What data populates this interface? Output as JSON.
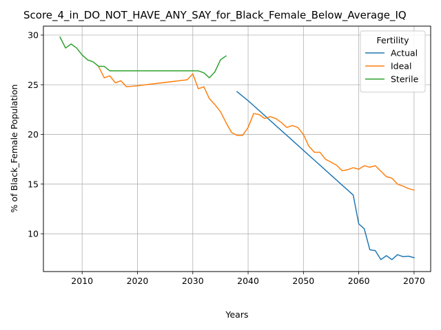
{
  "chart_data": {
    "type": "line",
    "title": "Score_4_in_DO_NOT_HAVE_ANY_SAY_for_Black_Female_Below_Average_IQ",
    "xlabel": "Years",
    "ylabel": "% of Black_Female Population",
    "xlim": [
      2003,
      2073
    ],
    "ylim": [
      6.2,
      30.9
    ],
    "xticks": [
      2010,
      2020,
      2030,
      2040,
      2050,
      2060,
      2070
    ],
    "yticks": [
      10,
      15,
      20,
      25,
      30
    ],
    "grid": true,
    "legend": {
      "title": "Fertility",
      "placement": "top-right"
    },
    "series": [
      {
        "name": "Actual",
        "color": "#1f77b4",
        "x": [
          2038,
          2039,
          2040,
          2041,
          2042,
          2043,
          2044,
          2045,
          2046,
          2047,
          2048,
          2049,
          2050,
          2051,
          2052,
          2053,
          2054,
          2055,
          2056,
          2057,
          2058,
          2059,
          2060,
          2061,
          2062,
          2063,
          2064,
          2065,
          2066,
          2067,
          2068,
          2069,
          2070
        ],
        "values": [
          24.3,
          23.85,
          23.4,
          22.9,
          22.4,
          21.9,
          21.4,
          20.9,
          20.4,
          19.9,
          19.4,
          18.9,
          18.4,
          17.9,
          17.4,
          16.9,
          16.4,
          15.9,
          15.4,
          14.9,
          14.4,
          13.9,
          11.0,
          10.5,
          8.4,
          8.3,
          7.4,
          7.8,
          7.4,
          7.9,
          7.7,
          7.75,
          7.6
        ]
      },
      {
        "name": "Ideal",
        "color": "#ff7f0e",
        "x": [
          2013,
          2014,
          2015,
          2016,
          2017,
          2018,
          2019,
          2020,
          2029,
          2030,
          2031,
          2032,
          2033,
          2034,
          2035,
          2036,
          2037,
          2038,
          2039,
          2040,
          2041,
          2042,
          2043,
          2044,
          2045,
          2046,
          2047,
          2048,
          2049,
          2050,
          2051,
          2052,
          2053,
          2054,
          2055,
          2056,
          2057,
          2058,
          2059,
          2060,
          2061,
          2062,
          2063,
          2064,
          2065,
          2066,
          2067,
          2068,
          2069,
          2070
        ],
        "values": [
          26.8,
          25.7,
          25.9,
          25.2,
          25.4,
          24.8,
          24.85,
          24.9,
          25.5,
          26.1,
          24.6,
          24.8,
          23.6,
          23.0,
          22.3,
          21.2,
          20.2,
          19.9,
          19.9,
          20.7,
          22.1,
          22.0,
          21.6,
          21.8,
          21.6,
          21.2,
          20.7,
          20.9,
          20.7,
          20.0,
          18.8,
          18.2,
          18.2,
          17.5,
          17.2,
          16.9,
          16.35,
          16.45,
          16.65,
          16.5,
          16.85,
          16.7,
          16.85,
          16.3,
          15.75,
          15.6,
          15.0,
          14.8,
          14.55,
          14.4
        ]
      },
      {
        "name": "Sterile",
        "color": "#2ca02c",
        "x": [
          2006,
          2007,
          2008,
          2009,
          2010,
          2011,
          2012,
          2013,
          2014,
          2015,
          2016,
          2017,
          2018,
          2019,
          2020,
          2021,
          2022,
          2023,
          2024,
          2025,
          2026,
          2027,
          2028,
          2029,
          2030,
          2031,
          2032,
          2033,
          2034,
          2035,
          2036
        ],
        "values": [
          29.8,
          28.7,
          29.1,
          28.7,
          28.0,
          27.5,
          27.3,
          26.85,
          26.85,
          26.4,
          26.4,
          26.4,
          26.4,
          26.4,
          26.4,
          26.4,
          26.4,
          26.4,
          26.4,
          26.4,
          26.4,
          26.4,
          26.4,
          26.4,
          26.4,
          26.4,
          26.2,
          25.7,
          26.3,
          27.5,
          27.9
        ]
      }
    ]
  }
}
